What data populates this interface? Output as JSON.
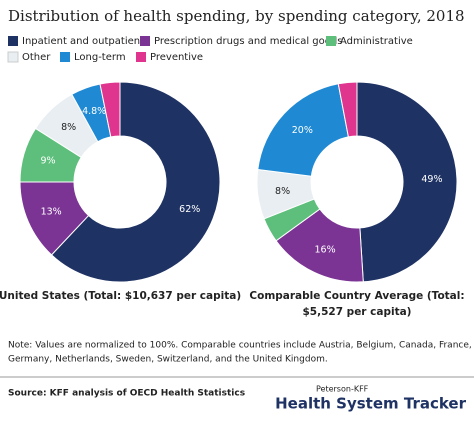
{
  "title": "Distribution of health spending, by spending category, 2018",
  "note": [
    "Note: Values are normalized to 100%. Comparable countries include Austria, Belgium, Canada, France,",
    "Germany, Netherlands, Sweden, Switzerland, and the United Kingdom."
  ],
  "source": "Source: KFF analysis of OECD Health Statistics",
  "brand": {
    "small": "Peterson-KFF",
    "large": "Health System Tracker"
  },
  "chart_data": [
    {
      "type": "donut",
      "title": [
        "United States (Total: $10,637 per capita)"
      ],
      "categories": [
        "Inpatient and outpatient",
        "Prescription drugs and medical goods",
        "Administrative",
        "Other",
        "Long-term",
        "Preventive"
      ],
      "colors": [
        "#1e3264",
        "#7b3494",
        "#5dbf7b",
        "#e9eef2",
        "#1f8ad3",
        "#e0358e"
      ],
      "values": [
        62,
        13,
        9,
        8,
        4.8,
        3.2
      ],
      "value_labels": [
        "62%",
        "13%",
        "9%",
        "8%",
        "4.8%",
        null
      ]
    },
    {
      "type": "donut",
      "title": [
        "Comparable Country Average (Total:",
        "$5,527 per capita)"
      ],
      "categories": [
        "Inpatient and outpatient",
        "Prescription drugs and medical goods",
        "Administrative",
        "Other",
        "Long-term",
        "Preventive"
      ],
      "colors": [
        "#1e3264",
        "#7b3494",
        "#5dbf7b",
        "#e9eef2",
        "#1f8ad3",
        "#e0358e"
      ],
      "values": [
        49,
        16,
        4,
        8,
        20,
        3
      ],
      "value_labels": [
        "49%",
        "16%",
        null,
        "8%",
        "20%",
        null
      ]
    }
  ]
}
